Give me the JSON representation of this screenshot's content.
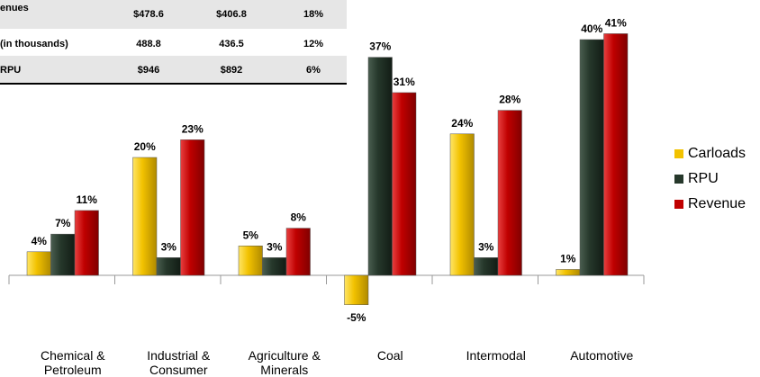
{
  "table": {
    "rows": [
      [
        "enues",
        "$478.6",
        "$406.8",
        "18%"
      ],
      [
        "(in thousands)",
        "488.8",
        "436.5",
        "12%"
      ],
      [
        "RPU",
        "$946",
        "$892",
        "6%"
      ]
    ]
  },
  "chart_data": {
    "type": "bar",
    "categories": [
      "Chemical & Petroleum",
      "Industrial & Consumer",
      "Agriculture & Minerals",
      "Coal",
      "Intermodal",
      "Automotive"
    ],
    "series": [
      {
        "name": "Carloads",
        "color": "#f2c200",
        "values": [
          4,
          20,
          5,
          -5,
          24,
          1
        ],
        "value_labels": [
          "4%",
          "20%",
          "5%",
          "-5%",
          "24%",
          "1%"
        ]
      },
      {
        "name": "RPU",
        "color": "#26382b",
        "values": [
          7,
          3,
          3,
          37,
          3,
          40
        ],
        "value_labels": [
          "7%",
          "3%",
          "3%",
          "37%",
          "3%",
          "40%"
        ]
      },
      {
        "name": "Revenue",
        "color": "#c00000",
        "values": [
          11,
          23,
          8,
          31,
          28,
          41
        ],
        "value_labels": [
          "11%",
          "23%",
          "8%",
          "31%",
          "28%",
          "41%"
        ]
      }
    ],
    "ylim": [
      -10,
      45
    ],
    "legend": "right"
  }
}
